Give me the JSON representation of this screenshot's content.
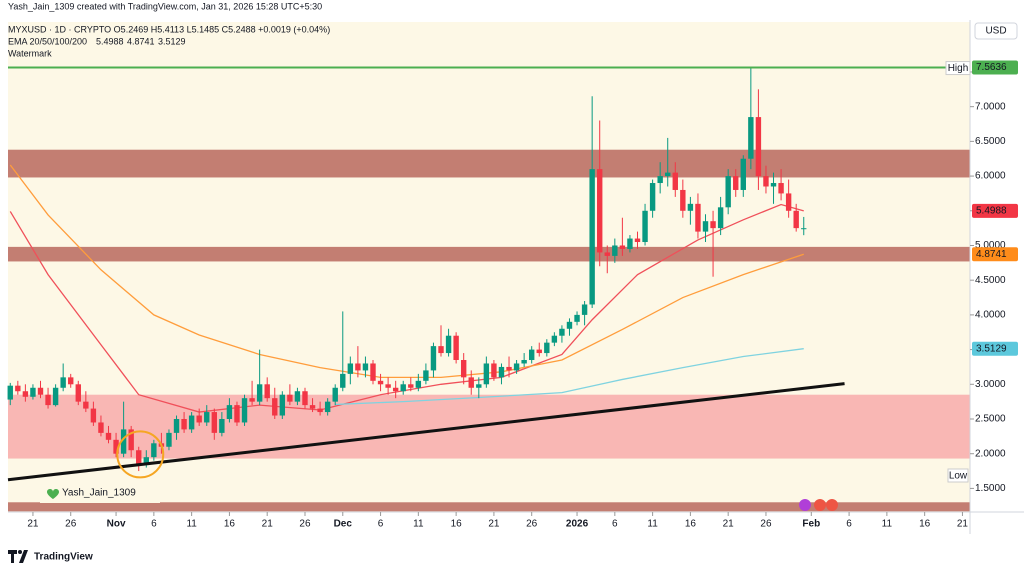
{
  "header": {
    "credit": "Yash_Jain_1309 created with TradingView.com, Jan 31, 2026 15:28 UTC+5:30",
    "symbol_line": "MYXUSD · 1D · CRYPTO  O5.2469  H5.4113  L5.1485  C5.2488  +0.0019 (+0.04%)",
    "ema_label": "EMA 20/50/100/200",
    "ema_values": [
      "5.4988",
      "4.8741",
      "3.5129"
    ],
    "watermark_label": "Watermark"
  },
  "chart_data": {
    "type": "candlestick",
    "currency": "USD",
    "xlim": [
      -0.3,
      127
    ],
    "ylim": [
      1.16,
      8.22
    ],
    "xticks": [
      {
        "value": 3,
        "label": "21"
      },
      {
        "value": 8,
        "label": "26"
      },
      {
        "value": 14,
        "label": "Nov"
      },
      {
        "value": 19,
        "label": "6"
      },
      {
        "value": 24,
        "label": "11"
      },
      {
        "value": 29,
        "label": "16"
      },
      {
        "value": 34,
        "label": "21"
      },
      {
        "value": 39,
        "label": "26"
      },
      {
        "value": 44,
        "label": "Dec"
      },
      {
        "value": 49,
        "label": "6"
      },
      {
        "value": 54,
        "label": "11"
      },
      {
        "value": 59,
        "label": "16"
      },
      {
        "value": 64,
        "label": "21"
      },
      {
        "value": 69,
        "label": "26"
      },
      {
        "value": 75,
        "label": "2026"
      },
      {
        "value": 80,
        "label": "6"
      },
      {
        "value": 85,
        "label": "11"
      },
      {
        "value": 90,
        "label": "16"
      },
      {
        "value": 95,
        "label": "21"
      },
      {
        "value": 100,
        "label": "26"
      },
      {
        "value": 106,
        "label": "Feb"
      },
      {
        "value": 111,
        "label": "6"
      },
      {
        "value": 116,
        "label": "11"
      },
      {
        "value": 121,
        "label": "16"
      },
      {
        "value": 126,
        "label": "21"
      }
    ],
    "yticks": [
      {
        "value": 1.5,
        "label": "1.5000"
      },
      {
        "value": 2,
        "label": "2.0000"
      },
      {
        "value": 2.5,
        "label": "2.5000"
      },
      {
        "value": 3,
        "label": "3.0000"
      },
      {
        "value": 3.5,
        "label": "3.5000"
      },
      {
        "value": 4,
        "label": "4.0000"
      },
      {
        "value": 4.5,
        "label": "4.5000"
      },
      {
        "value": 5,
        "label": "5.0000"
      },
      {
        "value": 5.5,
        "label": "5.5000"
      },
      {
        "value": 6,
        "label": "6.0000"
      },
      {
        "value": 6.5,
        "label": "6.5000"
      },
      {
        "value": 7,
        "label": "7.0000"
      },
      {
        "value": 7.5,
        "label": "7.5000"
      }
    ],
    "up_color": "#089981",
    "down_color": "#f23645",
    "ohlc": [
      [
        2.78,
        3.02,
        2.7,
        2.98
      ],
      [
        2.98,
        3.05,
        2.85,
        2.9
      ],
      [
        2.9,
        3.0,
        2.75,
        2.82
      ],
      [
        2.82,
        3.0,
        2.78,
        2.95
      ],
      [
        2.95,
        3.05,
        2.8,
        2.85
      ],
      [
        2.85,
        2.95,
        2.65,
        2.7
      ],
      [
        2.7,
        3.0,
        2.68,
        2.95
      ],
      [
        2.95,
        3.3,
        2.9,
        3.1
      ],
      [
        3.1,
        3.15,
        2.95,
        3.0
      ],
      [
        3.0,
        3.05,
        2.7,
        2.75
      ],
      [
        2.75,
        2.9,
        2.6,
        2.65
      ],
      [
        2.65,
        2.75,
        2.4,
        2.45
      ],
      [
        2.45,
        2.55,
        2.25,
        2.3
      ],
      [
        2.3,
        2.4,
        2.15,
        2.2
      ],
      [
        2.2,
        2.3,
        1.95,
        2.0
      ],
      [
        2.0,
        2.75,
        1.95,
        2.35
      ],
      [
        2.35,
        2.4,
        1.95,
        2.05
      ],
      [
        2.05,
        2.1,
        1.75,
        1.85
      ],
      [
        1.85,
        2.05,
        1.8,
        1.95
      ],
      [
        1.95,
        2.2,
        1.9,
        2.15
      ],
      [
        2.15,
        2.3,
        2.0,
        2.1
      ],
      [
        2.1,
        2.35,
        2.05,
        2.3
      ],
      [
        2.3,
        2.55,
        2.2,
        2.5
      ],
      [
        2.5,
        2.6,
        2.3,
        2.35
      ],
      [
        2.35,
        2.6,
        2.3,
        2.55
      ],
      [
        2.55,
        2.65,
        2.4,
        2.45
      ],
      [
        2.45,
        2.7,
        2.4,
        2.6
      ],
      [
        2.6,
        2.65,
        2.2,
        2.3
      ],
      [
        2.3,
        2.6,
        2.25,
        2.5
      ],
      [
        2.5,
        2.8,
        2.45,
        2.7
      ],
      [
        2.7,
        2.75,
        2.4,
        2.45
      ],
      [
        2.45,
        2.85,
        2.4,
        2.8
      ],
      [
        2.8,
        3.05,
        2.7,
        2.75
      ],
      [
        2.75,
        3.5,
        2.7,
        3.0
      ],
      [
        3.0,
        3.1,
        2.75,
        2.8
      ],
      [
        2.8,
        2.95,
        2.5,
        2.55
      ],
      [
        2.55,
        2.9,
        2.5,
        2.85
      ],
      [
        2.85,
        3.0,
        2.7,
        2.75
      ],
      [
        2.75,
        2.95,
        2.7,
        2.9
      ],
      [
        2.9,
        2.95,
        2.65,
        2.7
      ],
      [
        2.7,
        2.8,
        2.6,
        2.65
      ],
      [
        2.65,
        2.75,
        2.55,
        2.6
      ],
      [
        2.6,
        2.8,
        2.55,
        2.75
      ],
      [
        2.75,
        3.0,
        2.7,
        2.95
      ],
      [
        2.95,
        4.05,
        2.9,
        3.15
      ],
      [
        3.15,
        3.4,
        3.0,
        3.3
      ],
      [
        3.3,
        3.55,
        3.1,
        3.2
      ],
      [
        3.2,
        3.4,
        3.1,
        3.3
      ],
      [
        3.3,
        3.35,
        3.0,
        3.05
      ],
      [
        3.05,
        3.15,
        2.9,
        3.0
      ],
      [
        3.0,
        3.1,
        2.85,
        2.95
      ],
      [
        2.95,
        3.05,
        2.8,
        2.9
      ],
      [
        2.9,
        3.05,
        2.85,
        3.0
      ],
      [
        3.0,
        3.1,
        2.9,
        2.95
      ],
      [
        2.95,
        3.15,
        2.9,
        3.05
      ],
      [
        3.05,
        3.3,
        3.0,
        3.2
      ],
      [
        3.2,
        3.6,
        3.1,
        3.55
      ],
      [
        3.55,
        3.85,
        3.4,
        3.45
      ],
      [
        3.45,
        3.8,
        3.4,
        3.7
      ],
      [
        3.7,
        3.75,
        3.3,
        3.35
      ],
      [
        3.35,
        3.45,
        3.0,
        3.1
      ],
      [
        3.1,
        3.2,
        2.85,
        2.95
      ],
      [
        2.95,
        3.1,
        2.8,
        3.0
      ],
      [
        3.0,
        3.4,
        2.95,
        3.3
      ],
      [
        3.3,
        3.35,
        3.05,
        3.1
      ],
      [
        3.1,
        3.3,
        3.0,
        3.25
      ],
      [
        3.25,
        3.4,
        3.1,
        3.2
      ],
      [
        3.2,
        3.35,
        3.15,
        3.3
      ],
      [
        3.3,
        3.45,
        3.25,
        3.35
      ],
      [
        3.35,
        3.55,
        3.3,
        3.5
      ],
      [
        3.5,
        3.6,
        3.4,
        3.45
      ],
      [
        3.45,
        3.65,
        3.4,
        3.6
      ],
      [
        3.6,
        3.75,
        3.55,
        3.7
      ],
      [
        3.7,
        3.85,
        3.6,
        3.8
      ],
      [
        3.8,
        3.95,
        3.7,
        3.9
      ],
      [
        3.9,
        4.05,
        3.85,
        4.0
      ],
      [
        4.0,
        4.2,
        3.85,
        4.15
      ],
      [
        4.15,
        7.15,
        4.1,
        6.1
      ],
      [
        6.1,
        6.8,
        4.7,
        4.9
      ],
      [
        4.9,
        5.0,
        4.6,
        4.85
      ],
      [
        4.85,
        5.1,
        4.75,
        5.0
      ],
      [
        5.0,
        5.4,
        4.85,
        4.95
      ],
      [
        4.95,
        5.15,
        4.9,
        5.1
      ],
      [
        5.1,
        5.2,
        4.95,
        5.05
      ],
      [
        5.05,
        5.6,
        5.0,
        5.5
      ],
      [
        5.5,
        5.95,
        5.4,
        5.9
      ],
      [
        5.9,
        6.2,
        5.75,
        6.0
      ],
      [
        6.0,
        6.55,
        5.85,
        6.05
      ],
      [
        6.05,
        6.2,
        5.7,
        5.8
      ],
      [
        5.8,
        5.95,
        5.4,
        5.5
      ],
      [
        5.5,
        5.7,
        5.3,
        5.6
      ],
      [
        5.6,
        5.75,
        5.1,
        5.2
      ],
      [
        5.2,
        5.45,
        5.05,
        5.35
      ],
      [
        5.35,
        5.5,
        4.55,
        5.25
      ],
      [
        5.25,
        5.7,
        5.15,
        5.55
      ],
      [
        5.55,
        6.1,
        5.45,
        6.0
      ],
      [
        6.0,
        6.1,
        5.7,
        5.8
      ],
      [
        5.8,
        6.3,
        5.7,
        6.25
      ],
      [
        6.25,
        7.5636,
        6.1,
        6.85
      ],
      [
        6.85,
        7.25,
        5.8,
        6.0
      ],
      [
        6.0,
        6.15,
        5.75,
        5.85
      ],
      [
        5.85,
        6.05,
        5.6,
        5.9
      ],
      [
        5.9,
        6.1,
        5.65,
        5.75
      ],
      [
        5.75,
        5.95,
        5.4,
        5.5
      ],
      [
        5.5,
        5.6,
        5.2,
        5.25
      ],
      [
        5.2469,
        5.4113,
        5.1485,
        5.2488
      ]
    ],
    "series": [
      {
        "name": "EMA 20",
        "color": "#f0505a",
        "x": [
          0,
          5,
          12,
          17,
          25,
          33,
          41,
          49,
          57,
          65,
          73,
          77,
          83,
          91,
          97,
          102,
          105
        ],
        "values": [
          5.49,
          4.58,
          3.57,
          2.85,
          2.6,
          2.7,
          2.63,
          2.85,
          3.0,
          3.1,
          3.43,
          3.93,
          4.58,
          5.08,
          5.37,
          5.59,
          5.4988
        ]
      },
      {
        "name": "EMA 50",
        "color": "#ff9d3c",
        "x": [
          0,
          5,
          12,
          19,
          25,
          33,
          41,
          49,
          57,
          65,
          73,
          81,
          89,
          97,
          105
        ],
        "values": [
          6.16,
          5.44,
          4.65,
          4.0,
          3.71,
          3.43,
          3.24,
          3.1,
          3.1,
          3.18,
          3.35,
          3.79,
          4.25,
          4.58,
          4.8741
        ]
      },
      {
        "name": "EMA 100",
        "color": "#7fd3e0",
        "x": [
          43,
          52,
          62,
          73,
          81,
          89,
          97,
          105
        ],
        "values": [
          2.71,
          2.75,
          2.81,
          2.88,
          3.07,
          3.24,
          3.4,
          3.5129
        ]
      }
    ],
    "zones": [
      {
        "from": 5.98,
        "to": 6.38,
        "color": "#b45f55"
      },
      {
        "from": 4.77,
        "to": 4.98,
        "color": "#b45f55"
      },
      {
        "from": 1.93,
        "to": 2.85,
        "color": "#f7a6a8"
      },
      {
        "from": 1.17,
        "to": 1.3,
        "color": "#b45f55"
      }
    ],
    "high": {
      "value": 7.5636,
      "color": "#4caf50",
      "label": "High"
    },
    "low_label": "Low",
    "trendline": {
      "x": [
        -0.3,
        110.4
      ],
      "values": [
        1.625,
        3.01
      ]
    },
    "circle": {
      "x": 17.2,
      "value": 1.99
    },
    "price_tags": [
      {
        "value": 5.4988,
        "color": "#f23645"
      },
      {
        "value": 4.8741,
        "color": "#ff8c1a"
      },
      {
        "value": 3.5129,
        "color": "#5cc8dc"
      }
    ],
    "watermark": "Yash_Jain_1309"
  },
  "footer": {
    "brand": "TradingView"
  }
}
